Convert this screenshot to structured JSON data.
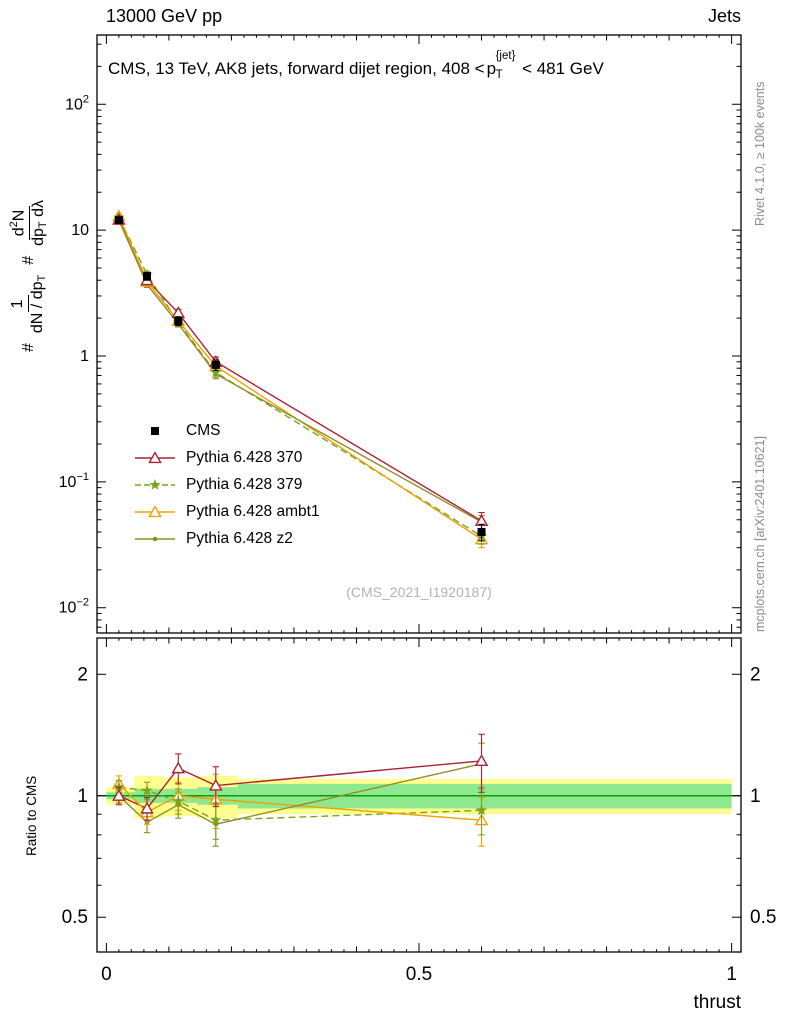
{
  "header": {
    "left": "13000 GeV pp",
    "right": "Jets"
  },
  "plot_title": {
    "part1": "CMS, 13 TeV, AK8 jets, forward dijet region, 408 <",
    "p_base": "p",
    "p_sup": "{jet}",
    "p_sub": "T",
    "part2": "< 481 GeV"
  },
  "ylabel": {
    "hash1": "#",
    "f1_num": "1",
    "f1_den": "dN / dp",
    "f1_den_sub": "T",
    "hash2": "#",
    "f2_num_a": "d",
    "f2_num_sup": "2",
    "f2_num_b": "N",
    "f2_den_a": "dp",
    "f2_den_sub": "T",
    "f2_den_b": "dλ"
  },
  "ratio_ylabel": "Ratio to CMS",
  "xlabel": "thrust",
  "watermark": "(CMS_2021_I1920187)",
  "credits": {
    "top": "Rivet 4.1.0, ≥ 100k events",
    "bottom": "mcplots.cern.ch [arXiv:2401.10621]"
  },
  "chart_data": {
    "type": "line",
    "title": "CMS, 13 TeV, AK8 jets, forward dijet region, 408 < pT{jet} < 481 GeV",
    "xlabel": "thrust",
    "ylabel": "# 1/(dN/dpT) # d2N/(dpT dlambda)",
    "ratio_ylabel": "Ratio to CMS",
    "x_axis": {
      "min": -0.015,
      "max": 1.015,
      "ticks": [
        {
          "v": 0,
          "label": "0"
        },
        {
          "v": 0.5,
          "label": "0.5"
        },
        {
          "v": 1,
          "label": "1"
        }
      ]
    },
    "main": {
      "ylog": true,
      "ymin": 0.0063,
      "ymax": 355,
      "yticks": [
        {
          "v": 100,
          "base": "10",
          "exp": "2"
        },
        {
          "v": 10,
          "base": "10",
          "exp": ""
        },
        {
          "v": 1,
          "base": "1",
          "exp": ""
        },
        {
          "v": 0.1,
          "base": "10",
          "exp": "−1"
        },
        {
          "v": 0.01,
          "base": "10",
          "exp": "−2"
        }
      ]
    },
    "ratio": {
      "ylog": true,
      "ymin": 0.41,
      "ymax": 2.46,
      "ref": 1,
      "yticks": [
        {
          "v": 2,
          "label": "2"
        },
        {
          "v": 1,
          "label": "1"
        },
        {
          "v": 0.5,
          "label": "0.5"
        }
      ],
      "minor": [
        0.6,
        0.7,
        0.8,
        0.9
      ],
      "bands": [
        {
          "x0": 0.0,
          "x1": 0.045,
          "yellow": [
            0.95,
            1.05
          ],
          "green": [
            0.98,
            1.02
          ]
        },
        {
          "x0": 0.045,
          "x1": 0.09,
          "yellow": [
            0.88,
            1.12
          ],
          "green": [
            0.96,
            1.04
          ]
        },
        {
          "x0": 0.09,
          "x1": 0.145,
          "yellow": [
            0.89,
            1.11
          ],
          "green": [
            0.96,
            1.04
          ]
        },
        {
          "x0": 0.145,
          "x1": 0.21,
          "yellow": [
            0.88,
            1.12
          ],
          "green": [
            0.95,
            1.05
          ]
        },
        {
          "x0": 0.21,
          "x1": 1.0,
          "yellow": [
            0.9,
            1.1
          ],
          "green": [
            0.93,
            1.07
          ]
        }
      ]
    },
    "x": [
      0.02,
      0.065,
      0.115,
      0.175,
      0.6
    ],
    "series": [
      {
        "name": "CMS",
        "color": "#000000",
        "marker": "square",
        "line": "none",
        "values": [
          12.0,
          4.3,
          1.9,
          0.85,
          0.04
        ],
        "yerr": [
          0.7,
          0.3,
          0.15,
          0.08,
          0.006
        ],
        "ratio": null,
        "ratio_err": null
      },
      {
        "name": "Pythia 6.428 370",
        "color": "#aa2233",
        "marker": "triangle-open",
        "line": "solid",
        "values": [
          12.1,
          4.0,
          2.2,
          0.9,
          0.049
        ],
        "yerr": [
          0.5,
          0.25,
          0.15,
          0.08,
          0.008
        ],
        "ratio": [
          1.0,
          0.93,
          1.17,
          1.06,
          1.22
        ],
        "ratio_err": [
          0.05,
          0.06,
          0.1,
          0.12,
          0.2
        ]
      },
      {
        "name": "Pythia 6.428 379",
        "color": "#7aa41e",
        "marker": "star",
        "line": "dashed",
        "values": [
          12.6,
          4.45,
          1.85,
          0.74,
          0.037
        ],
        "yerr": [
          0.5,
          0.25,
          0.12,
          0.06,
          0.005
        ],
        "ratio": [
          1.05,
          1.03,
          0.97,
          0.87,
          0.92
        ],
        "ratio_err": [
          0.04,
          0.05,
          0.07,
          0.09,
          0.12
        ]
      },
      {
        "name": "Pythia 6.428 ambt1",
        "color": "#f0a000",
        "marker": "triangle-open",
        "line": "solid",
        "values": [
          12.9,
          3.9,
          1.9,
          0.83,
          0.035
        ],
        "yerr": [
          0.5,
          0.2,
          0.12,
          0.07,
          0.005
        ],
        "ratio": [
          1.07,
          0.91,
          1.0,
          0.98,
          0.87
        ],
        "ratio_err": [
          0.05,
          0.06,
          0.08,
          0.15,
          0.12
        ]
      },
      {
        "name": "Pythia 6.428 z2",
        "color": "#8e8e22",
        "marker": "dot",
        "line": "solid",
        "values": [
          12.0,
          3.7,
          1.8,
          0.72,
          0.048
        ],
        "yerr": [
          0.4,
          0.2,
          0.1,
          0.06,
          0.006
        ],
        "ratio": [
          1.0,
          0.86,
          0.95,
          0.85,
          1.2
        ],
        "ratio_err": [
          0.04,
          0.05,
          0.07,
          0.1,
          0.15
        ]
      }
    ],
    "colors": {
      "band_yellow": "#ffff8f",
      "band_green": "#8fe88f",
      "ref_line": "#00a000",
      "frame": "#000000"
    },
    "legend_position": "inside-left-middle",
    "grid": false
  }
}
